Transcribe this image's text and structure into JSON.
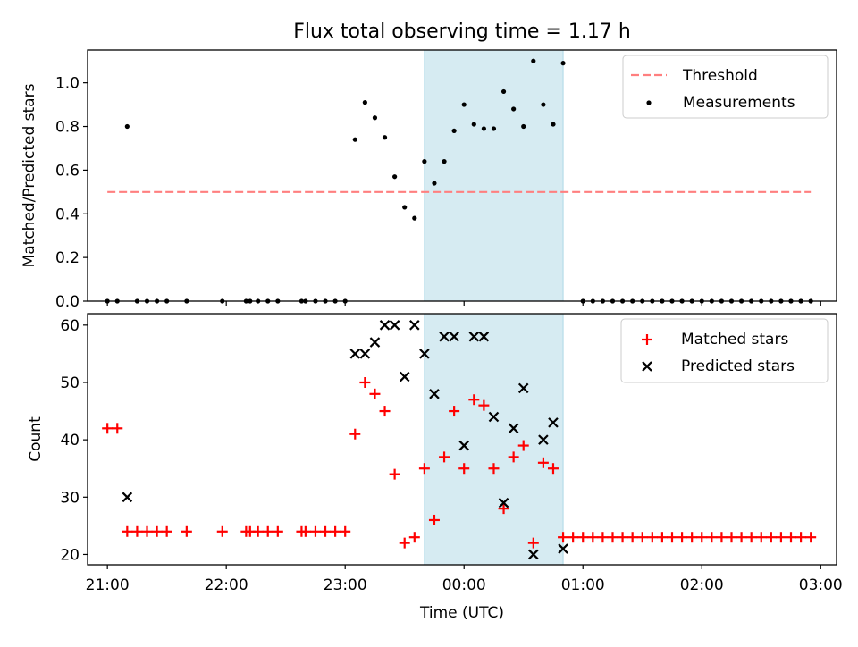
{
  "chart_data": {
    "title": "Flux total observing time = 1.17 h",
    "xlabel": "Time (UTC)",
    "x_ticks": [
      "21:00",
      "22:00",
      "23:00",
      "00:00",
      "01:00",
      "02:00",
      "03:00"
    ],
    "x_range": [
      "20:50",
      "03:08"
    ],
    "shaded_interval": [
      "23:40",
      "00:50"
    ],
    "colors": {
      "threshold": "#ff7f7f",
      "measurements": "#000000",
      "matched": "#ff0000",
      "predicted": "#000000",
      "shade": "#add8e6"
    },
    "panels": [
      {
        "type": "scatter",
        "ylabel": "Matched/Predicted stars",
        "ylim": [
          0,
          1.15
        ],
        "y_ticks": [
          "0.0",
          "0.2",
          "0.4",
          "0.6",
          "0.8",
          "1.0"
        ],
        "legend_position": "top-right",
        "legend": [
          "Threshold",
          "Measurements"
        ],
        "threshold": {
          "name": "Threshold",
          "y": 0.5,
          "x_start": "21:00",
          "x_end": "02:55"
        },
        "series": [
          {
            "name": "Measurements",
            "points": [
              [
                "21:00",
                0
              ],
              [
                "21:05",
                0
              ],
              [
                "21:10",
                0.8
              ],
              [
                "21:15",
                0
              ],
              [
                "21:20",
                0
              ],
              [
                "21:25",
                0
              ],
              [
                "21:30",
                0
              ],
              [
                "21:40",
                0
              ],
              [
                "21:58",
                0
              ],
              [
                "22:10",
                0
              ],
              [
                "22:12",
                0
              ],
              [
                "22:16",
                0
              ],
              [
                "22:21",
                0
              ],
              [
                "22:26",
                0
              ],
              [
                "22:38",
                0
              ],
              [
                "22:40",
                0
              ],
              [
                "22:45",
                0
              ],
              [
                "22:50",
                0
              ],
              [
                "22:55",
                0
              ],
              [
                "23:00",
                0
              ],
              [
                "23:05",
                0.74
              ],
              [
                "23:10",
                0.91
              ],
              [
                "23:15",
                0.84
              ],
              [
                "23:20",
                0.75
              ],
              [
                "23:25",
                0.57
              ],
              [
                "23:30",
                0.43
              ],
              [
                "23:35",
                0.38
              ],
              [
                "23:40",
                0.64
              ],
              [
                "23:45",
                0.54
              ],
              [
                "23:50",
                0.64
              ],
              [
                "23:55",
                0.78
              ],
              [
                "00:00",
                0.9
              ],
              [
                "00:05",
                0.81
              ],
              [
                "00:10",
                0.79
              ],
              [
                "00:15",
                0.79
              ],
              [
                "00:20",
                0.96
              ],
              [
                "00:25",
                0.88
              ],
              [
                "00:30",
                0.8
              ],
              [
                "00:35",
                1.1
              ],
              [
                "00:40",
                0.9
              ],
              [
                "00:45",
                0.81
              ],
              [
                "00:50",
                1.09
              ],
              [
                "01:00",
                0
              ],
              [
                "01:05",
                0
              ],
              [
                "01:10",
                0
              ],
              [
                "01:15",
                0
              ],
              [
                "01:20",
                0
              ],
              [
                "01:25",
                0
              ],
              [
                "01:30",
                0
              ],
              [
                "01:35",
                0
              ],
              [
                "01:40",
                0
              ],
              [
                "01:45",
                0
              ],
              [
                "01:50",
                0
              ],
              [
                "01:55",
                0
              ],
              [
                "02:00",
                0
              ],
              [
                "02:05",
                0
              ],
              [
                "02:10",
                0
              ],
              [
                "02:15",
                0
              ],
              [
                "02:20",
                0
              ],
              [
                "02:25",
                0
              ],
              [
                "02:30",
                0
              ],
              [
                "02:35",
                0
              ],
              [
                "02:40",
                0
              ],
              [
                "02:45",
                0
              ],
              [
                "02:50",
                0
              ],
              [
                "02:55",
                0
              ]
            ]
          }
        ]
      },
      {
        "type": "scatter",
        "ylabel": "Count",
        "ylim": [
          18.2,
          62
        ],
        "y_ticks": [
          "20",
          "30",
          "40",
          "50",
          "60"
        ],
        "legend_position": "top-right",
        "legend": [
          "Matched stars",
          "Predicted stars"
        ],
        "series": [
          {
            "name": "Matched stars",
            "marker": "+",
            "points": [
              [
                "21:00",
                42
              ],
              [
                "21:05",
                42
              ],
              [
                "21:10",
                24
              ],
              [
                "21:15",
                24
              ],
              [
                "21:20",
                24
              ],
              [
                "21:25",
                24
              ],
              [
                "21:30",
                24
              ],
              [
                "21:40",
                24
              ],
              [
                "21:58",
                24
              ],
              [
                "22:10",
                24
              ],
              [
                "22:12",
                24
              ],
              [
                "22:16",
                24
              ],
              [
                "22:21",
                24
              ],
              [
                "22:26",
                24
              ],
              [
                "22:38",
                24
              ],
              [
                "22:40",
                24
              ],
              [
                "22:45",
                24
              ],
              [
                "22:50",
                24
              ],
              [
                "22:55",
                24
              ],
              [
                "23:00",
                24
              ],
              [
                "23:05",
                41
              ],
              [
                "23:10",
                50
              ],
              [
                "23:15",
                48
              ],
              [
                "23:20",
                45
              ],
              [
                "23:25",
                34
              ],
              [
                "23:30",
                22
              ],
              [
                "23:35",
                23
              ],
              [
                "23:40",
                35
              ],
              [
                "23:45",
                26
              ],
              [
                "23:50",
                37
              ],
              [
                "23:55",
                45
              ],
              [
                "00:00",
                35
              ],
              [
                "00:05",
                47
              ],
              [
                "00:10",
                46
              ],
              [
                "00:15",
                35
              ],
              [
                "00:20",
                28
              ],
              [
                "00:25",
                37
              ],
              [
                "00:30",
                39
              ],
              [
                "00:35",
                22
              ],
              [
                "00:40",
                36
              ],
              [
                "00:45",
                35
              ],
              [
                "00:50",
                23
              ],
              [
                "00:55",
                23
              ],
              [
                "01:00",
                23
              ],
              [
                "01:05",
                23
              ],
              [
                "01:10",
                23
              ],
              [
                "01:15",
                23
              ],
              [
                "01:20",
                23
              ],
              [
                "01:25",
                23
              ],
              [
                "01:30",
                23
              ],
              [
                "01:35",
                23
              ],
              [
                "01:40",
                23
              ],
              [
                "01:45",
                23
              ],
              [
                "01:50",
                23
              ],
              [
                "01:55",
                23
              ],
              [
                "02:00",
                23
              ],
              [
                "02:05",
                23
              ],
              [
                "02:10",
                23
              ],
              [
                "02:15",
                23
              ],
              [
                "02:20",
                23
              ],
              [
                "02:25",
                23
              ],
              [
                "02:30",
                23
              ],
              [
                "02:35",
                23
              ],
              [
                "02:40",
                23
              ],
              [
                "02:45",
                23
              ],
              [
                "02:50",
                23
              ],
              [
                "02:55",
                23
              ]
            ]
          },
          {
            "name": "Predicted stars",
            "marker": "x",
            "points": [
              [
                "21:10",
                30
              ],
              [
                "23:05",
                55
              ],
              [
                "23:10",
                55
              ],
              [
                "23:15",
                57
              ],
              [
                "23:20",
                60
              ],
              [
                "23:25",
                60
              ],
              [
                "23:30",
                51
              ],
              [
                "23:35",
                60
              ],
              [
                "23:40",
                55
              ],
              [
                "23:45",
                48
              ],
              [
                "23:50",
                58
              ],
              [
                "23:55",
                58
              ],
              [
                "00:00",
                39
              ],
              [
                "00:05",
                58
              ],
              [
                "00:10",
                58
              ],
              [
                "00:15",
                44
              ],
              [
                "00:20",
                29
              ],
              [
                "00:25",
                42
              ],
              [
                "00:30",
                49
              ],
              [
                "00:35",
                20
              ],
              [
                "00:40",
                40
              ],
              [
                "00:45",
                43
              ],
              [
                "00:50",
                21
              ]
            ]
          }
        ]
      }
    ]
  }
}
